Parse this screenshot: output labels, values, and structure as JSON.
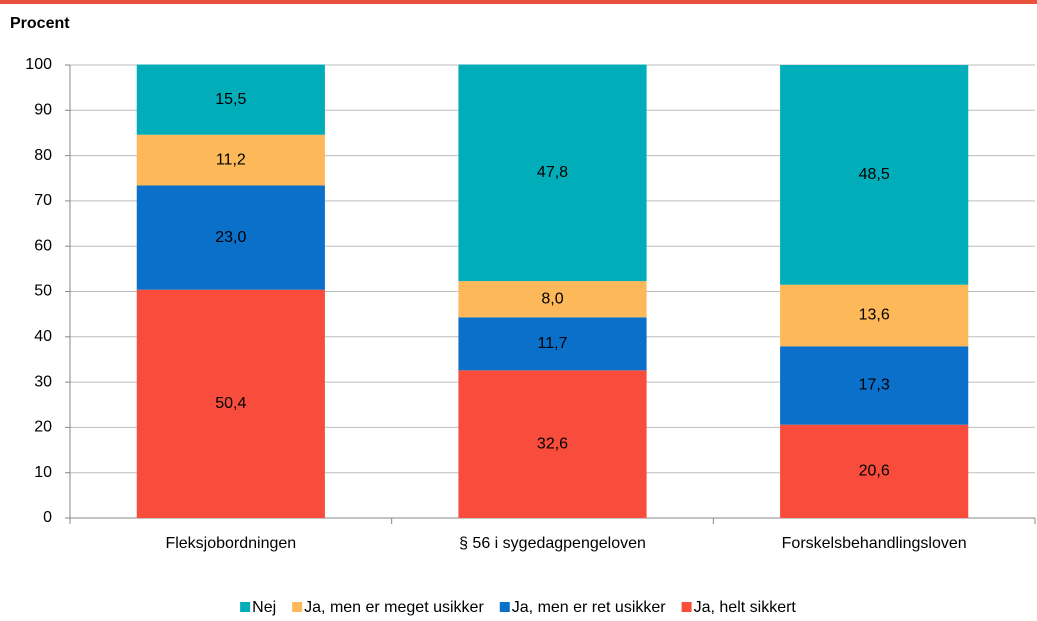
{
  "chart_data": {
    "type": "stacked_bar",
    "y_label": "Procent",
    "categories": [
      "Fleksjobordningen",
      "§ 56 i sygedagpengeloven",
      "Forskelsbehandlingsloven"
    ],
    "series": [
      {
        "name": "Nej",
        "color": "#00adb9",
        "values": [
          15.5,
          47.8,
          48.5
        ],
        "value_labels": [
          "15,5",
          "47,8",
          "48,5"
        ]
      },
      {
        "name": "Ja, men er meget usikker",
        "color": "#fdb85a",
        "values": [
          11.2,
          8.0,
          13.6
        ],
        "value_labels": [
          "11,2",
          "8,0",
          "13,6"
        ]
      },
      {
        "name": "Ja, men er ret usikker",
        "color": "#0a70c9",
        "values": [
          23.0,
          11.7,
          17.3
        ],
        "value_labels": [
          "23,0",
          "11,7",
          "17,3"
        ]
      },
      {
        "name": "Ja, helt sikkert",
        "color": "#f84d3c",
        "values": [
          50.4,
          32.6,
          20.6
        ],
        "value_labels": [
          "50,4",
          "32,6",
          "20,6"
        ]
      }
    ],
    "ylim": [
      0,
      100
    ],
    "yticks": [
      0,
      10,
      20,
      30,
      40,
      50,
      60,
      70,
      80,
      90,
      100
    ],
    "grid": true
  }
}
